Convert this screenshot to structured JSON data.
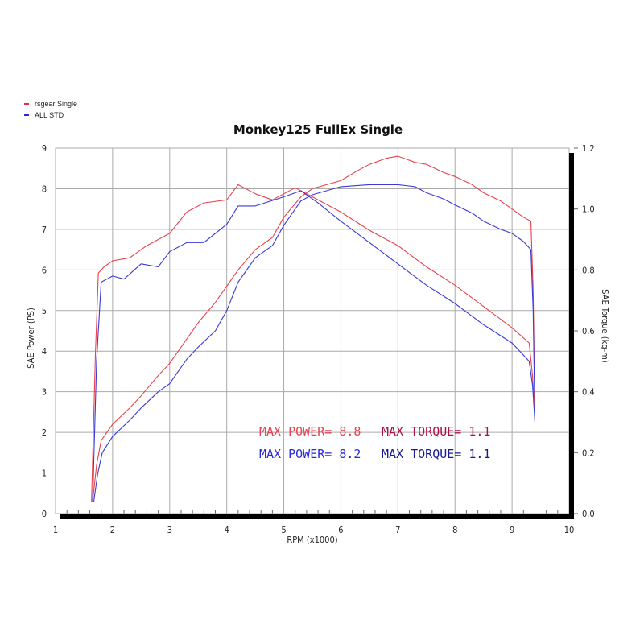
{
  "chart_data": {
    "type": "line",
    "title": "Monkey125 FullEx Single",
    "xlabel": "RPM (x1000)",
    "ylabel": "SAE Power (PS)",
    "y2label": "SAE Torque (kg-m)",
    "xlim": [
      1,
      10
    ],
    "ylim": [
      0,
      9
    ],
    "y2lim": [
      0,
      1.2
    ],
    "xticks": [
      "1",
      "2",
      "3",
      "4",
      "5",
      "6",
      "7",
      "8",
      "9",
      "10"
    ],
    "yticks": [
      "0",
      "1",
      "2",
      "3",
      "4",
      "5",
      "6",
      "7",
      "8",
      "9"
    ],
    "y2ticks": [
      "0.0",
      "0.2",
      "0.4",
      "0.6",
      "0.8",
      "1.0",
      "1.2"
    ],
    "grid": true,
    "legend": {
      "placement": "top-left",
      "entries": [
        {
          "label": "rsgear Single",
          "color": "#e0303e"
        },
        {
          "label": "ALL STD",
          "color": "#2a2ad0"
        }
      ]
    },
    "series": [
      {
        "name": "rsgear Single power",
        "axis": "left",
        "color": "#e8424f",
        "x": [
          1.65,
          1.72,
          1.8,
          2.0,
          2.3,
          2.5,
          2.8,
          3.0,
          3.3,
          3.5,
          3.8,
          4.0,
          4.2,
          4.5,
          4.8,
          5.0,
          5.3,
          5.5,
          6.0,
          6.3,
          6.5,
          6.8,
          7.0,
          7.3,
          7.5,
          7.8,
          8.0,
          8.3,
          8.5,
          8.8,
          9.0,
          9.2,
          9.33,
          9.37,
          9.4
        ],
        "y": [
          0.3,
          1.2,
          1.8,
          2.2,
          2.6,
          2.9,
          3.4,
          3.7,
          4.3,
          4.7,
          5.2,
          5.6,
          6.0,
          6.5,
          6.8,
          7.3,
          7.8,
          8.0,
          8.2,
          8.45,
          8.6,
          8.75,
          8.8,
          8.65,
          8.6,
          8.4,
          8.3,
          8.1,
          7.9,
          7.7,
          7.5,
          7.3,
          7.2,
          5.5,
          2.5
        ]
      },
      {
        "name": "ALL STD power",
        "axis": "left",
        "color": "#3a3ad8",
        "x": [
          1.67,
          1.74,
          1.82,
          2.0,
          2.3,
          2.5,
          2.8,
          3.0,
          3.3,
          3.5,
          3.8,
          4.0,
          4.2,
          4.5,
          4.8,
          5.0,
          5.3,
          5.5,
          6.0,
          6.5,
          6.8,
          7.0,
          7.3,
          7.5,
          7.8,
          8.0,
          8.3,
          8.5,
          8.8,
          9.0,
          9.2,
          9.33,
          9.37,
          9.4
        ],
        "y": [
          0.3,
          1.0,
          1.5,
          1.9,
          2.3,
          2.6,
          3.0,
          3.2,
          3.8,
          4.1,
          4.5,
          5.0,
          5.7,
          6.3,
          6.6,
          7.1,
          7.7,
          7.85,
          8.05,
          8.1,
          8.1,
          8.1,
          8.05,
          7.9,
          7.75,
          7.6,
          7.4,
          7.2,
          7.0,
          6.9,
          6.7,
          6.5,
          5.0,
          2.3
        ]
      },
      {
        "name": "rsgear Single torque",
        "axis": "right",
        "color": "#e8424f",
        "x": [
          1.63,
          1.7,
          1.75,
          1.85,
          2.0,
          2.3,
          2.6,
          3.0,
          3.3,
          3.6,
          4.0,
          4.2,
          4.5,
          4.8,
          5.2,
          5.5,
          6.0,
          6.5,
          7.0,
          7.5,
          8.0,
          8.5,
          9.0,
          9.3,
          9.36,
          9.4
        ],
        "y": [
          0.04,
          0.53,
          0.79,
          0.81,
          0.83,
          0.84,
          0.88,
          0.92,
          0.99,
          1.02,
          1.03,
          1.08,
          1.05,
          1.03,
          1.07,
          1.04,
          0.99,
          0.93,
          0.88,
          0.81,
          0.75,
          0.68,
          0.61,
          0.56,
          0.45,
          0.33
        ]
      },
      {
        "name": "ALL STD torque",
        "axis": "right",
        "color": "#3a3ad8",
        "x": [
          1.65,
          1.72,
          1.8,
          2.0,
          2.2,
          2.5,
          2.8,
          3.0,
          3.3,
          3.6,
          4.0,
          4.2,
          4.5,
          5.0,
          5.3,
          5.6,
          6.0,
          6.5,
          7.0,
          7.5,
          8.0,
          8.5,
          9.0,
          9.3,
          9.36,
          9.4
        ],
        "y": [
          0.04,
          0.5,
          0.76,
          0.78,
          0.77,
          0.82,
          0.81,
          0.86,
          0.89,
          0.89,
          0.95,
          1.01,
          1.01,
          1.04,
          1.06,
          1.02,
          0.96,
          0.89,
          0.82,
          0.75,
          0.69,
          0.62,
          0.56,
          0.5,
          0.42,
          0.3
        ]
      }
    ],
    "annotations": [
      {
        "text": "MAX POWER= 8.8",
        "color": "#e8424f"
      },
      {
        "text": "MAX TORQUE= 1.1",
        "color": "#b01040"
      },
      {
        "text": "MAX POWER= 8.2",
        "color": "#2a2ad8"
      },
      {
        "text": "MAX TORQUE= 1.1",
        "color": "#1a1a90"
      }
    ]
  }
}
